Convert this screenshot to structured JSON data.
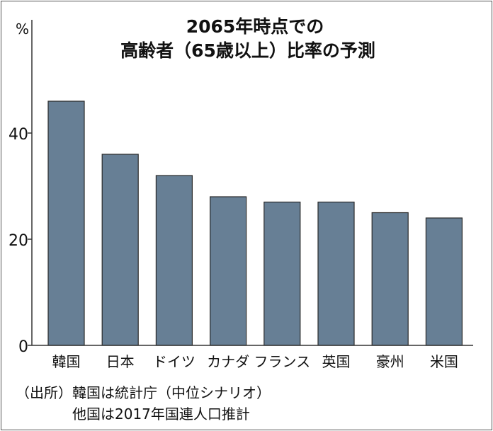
{
  "chart_data": {
    "type": "bar",
    "title": "2065年時点での",
    "subtitle": "高齢者（65歳以上）比率の予測",
    "ylabel": "%",
    "xlabel": "",
    "categories": [
      "韓国",
      "日本",
      "ドイツ",
      "カナダ",
      "フランス",
      "英国",
      "豪州",
      "米国"
    ],
    "values": [
      46,
      36,
      32,
      28,
      27,
      27,
      25,
      24
    ],
    "ylim": [
      0,
      50
    ],
    "yticks": [
      0,
      20,
      40
    ],
    "grid": false,
    "bar_color": "#677f95",
    "source_lines": [
      "（出所）韓国は統計庁（中位シナリオ）",
      "他国は2017年国連人口推計"
    ]
  }
}
